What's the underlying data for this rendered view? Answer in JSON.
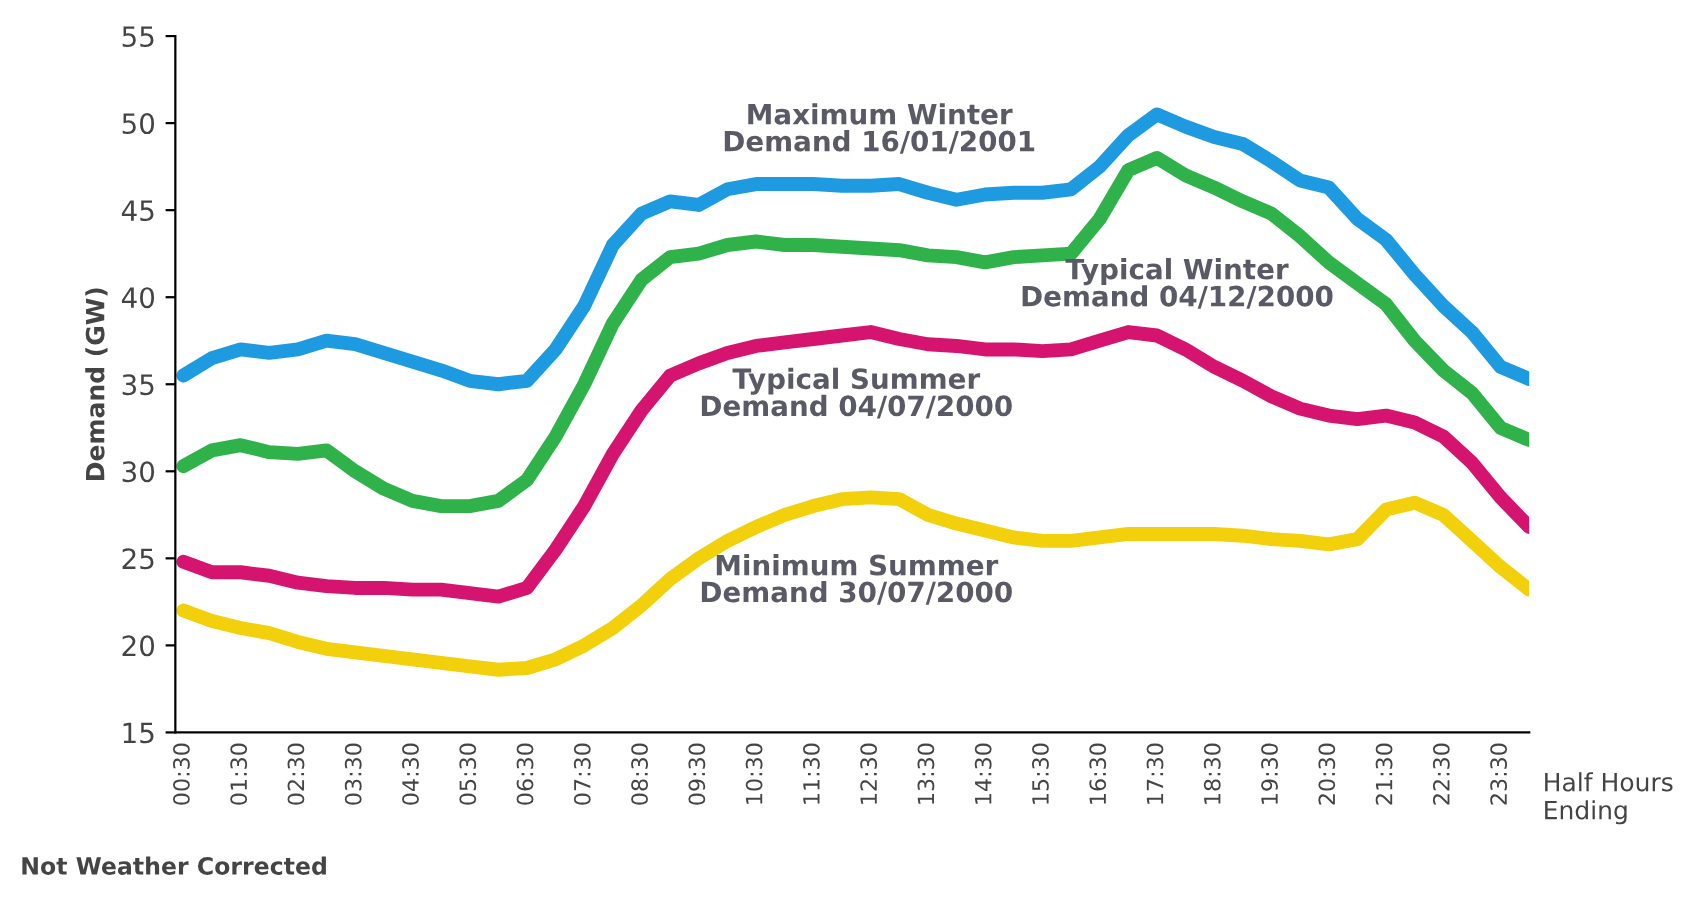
{
  "chart_data": {
    "type": "line",
    "ylabel": "Demand (GW)",
    "xlabel": "Half Hours\nEnding",
    "ylim": [
      15,
      55
    ],
    "yticks": [
      15,
      20,
      25,
      30,
      35,
      40,
      45,
      50,
      55
    ],
    "grid": false,
    "legend": false,
    "marker": "none",
    "line_style": "solid",
    "categories": [
      "00:30",
      null,
      "01:30",
      null,
      "02:30",
      null,
      "03:30",
      null,
      "04:30",
      null,
      "05:30",
      null,
      "06:30",
      null,
      "07:30",
      null,
      "08:30",
      null,
      "09:30",
      null,
      "10:30",
      null,
      "11:30",
      null,
      "12:30",
      null,
      "13:30",
      null,
      "14:30",
      null,
      "15:30",
      null,
      "16:30",
      null,
      "17:30",
      null,
      "18:30",
      null,
      "19:30",
      null,
      "20:30",
      null,
      "21:30",
      null,
      "22:30",
      null,
      "23:30",
      null
    ],
    "series": [
      {
        "name": "Maximum Winter\nDemand 16/01/2001",
        "color": "#1e9be0",
        "values": [
          35.5,
          36.5,
          37,
          36.8,
          37,
          37.5,
          37.3,
          36.8,
          36.3,
          35.8,
          35.2,
          35,
          35.2,
          37,
          39.5,
          43,
          44.8,
          45.5,
          45.3,
          46.2,
          46.5,
          46.5,
          46.5,
          46.4,
          46.4,
          46.5,
          46,
          45.6,
          45.9,
          46,
          46,
          46.2,
          47.5,
          49.3,
          50.5,
          49.8,
          49.2,
          48.8,
          47.8,
          46.7,
          46.3,
          44.5,
          43.3,
          41.3,
          39.5,
          38,
          36,
          35.3
        ]
      },
      {
        "name": "Typical Winter\nDemand 04/12/2000",
        "color": "#2fb24a",
        "values": [
          30.3,
          31.2,
          31.5,
          31.1,
          31,
          31.2,
          30,
          29,
          28.3,
          28,
          28,
          28.3,
          29.5,
          32,
          35,
          38.5,
          41,
          42.3,
          42.5,
          43,
          43.2,
          43,
          43,
          42.9,
          42.8,
          42.7,
          42.4,
          42.3,
          42,
          42.3,
          42.4,
          42.5,
          44.5,
          47.3,
          48,
          47,
          46.3,
          45.5,
          44.8,
          43.5,
          42,
          40.8,
          39.6,
          37.5,
          35.8,
          34.5,
          32.5,
          31.8
        ]
      },
      {
        "name": "Typical Summer\nDemand 04/07/2000",
        "color": "#d4146e",
        "values": [
          24.8,
          24.2,
          24.2,
          24,
          23.6,
          23.4,
          23.3,
          23.3,
          23.2,
          23.2,
          23,
          22.8,
          23.3,
          25.5,
          28,
          31,
          33.5,
          35.5,
          36.2,
          36.8,
          37.2,
          37.4,
          37.6,
          37.8,
          38,
          37.6,
          37.3,
          37.2,
          37,
          37,
          36.9,
          37,
          37.5,
          38,
          37.8,
          37,
          36,
          35.2,
          34.3,
          33.6,
          33.2,
          33,
          33.2,
          32.8,
          32,
          30.5,
          28.5,
          26.8
        ]
      },
      {
        "name": "Minimum Summer\nDemand 30/07/2000",
        "color": "#f2d00c",
        "values": [
          22,
          21.4,
          21,
          20.7,
          20.2,
          19.8,
          19.6,
          19.4,
          19.2,
          19,
          18.8,
          18.6,
          18.7,
          19.2,
          20,
          21,
          22.3,
          23.8,
          25,
          26,
          26.8,
          27.5,
          28,
          28.4,
          28.5,
          28.4,
          27.5,
          27,
          26.6,
          26.2,
          26,
          26,
          26.2,
          26.4,
          26.4,
          26.4,
          26.4,
          26.3,
          26.1,
          26,
          25.8,
          26.1,
          27.8,
          28.2,
          27.5,
          26,
          24.5,
          23.2
        ]
      }
    ],
    "annotations": [
      "Not Weather Corrected"
    ]
  }
}
